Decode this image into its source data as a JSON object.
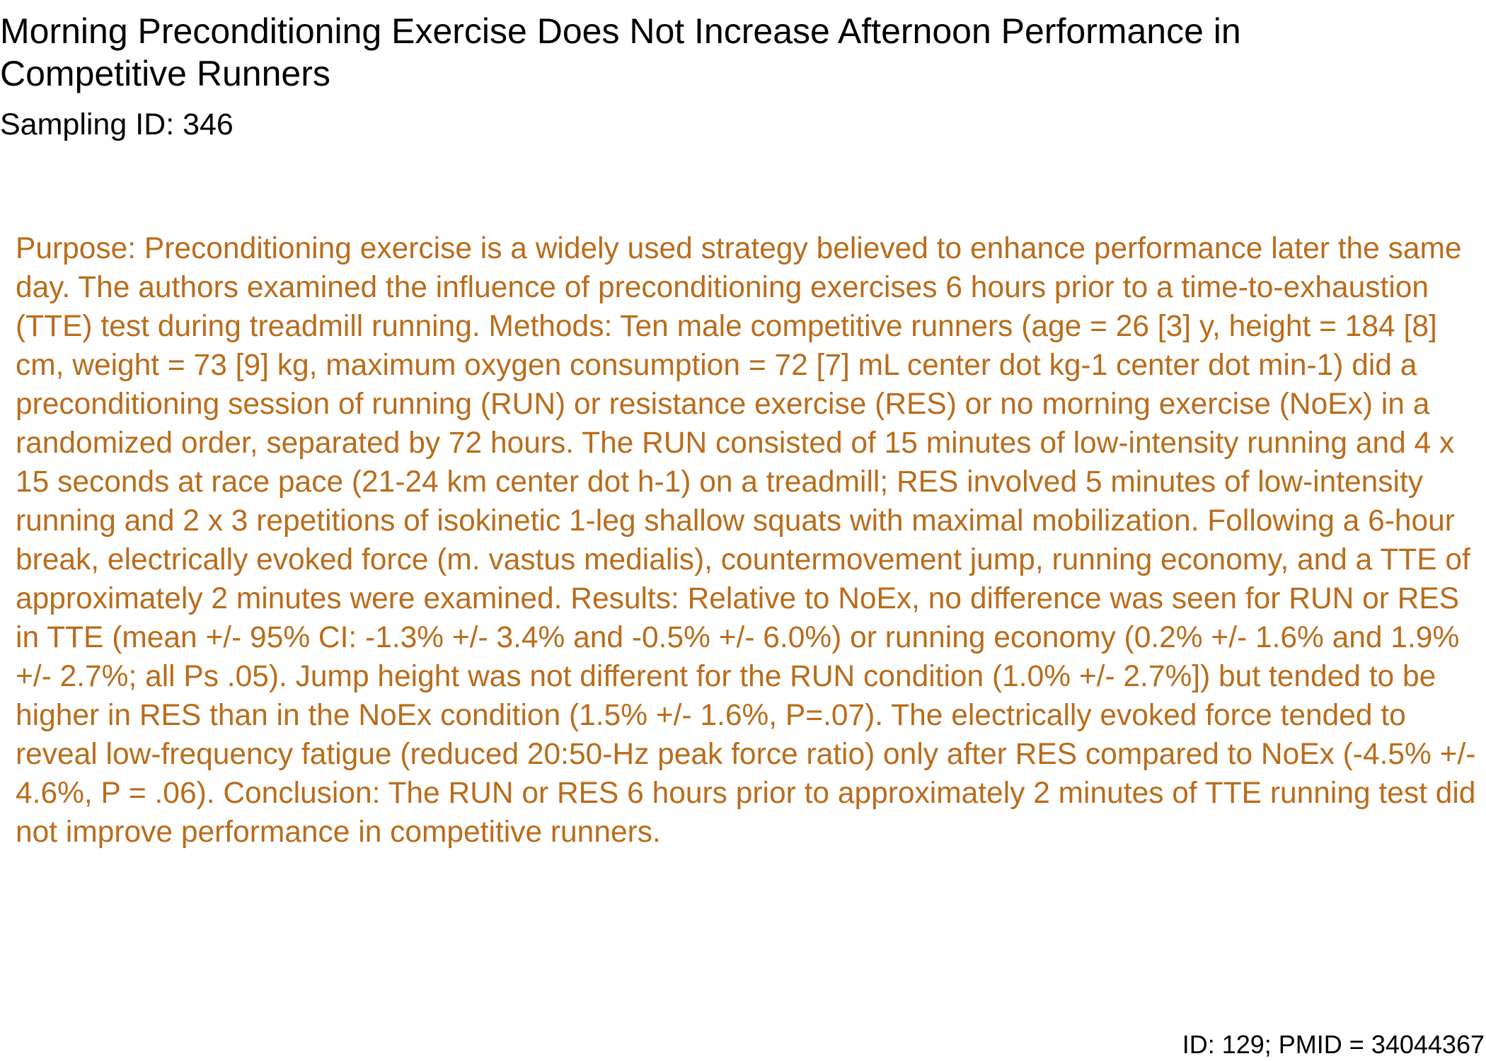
{
  "document": {
    "title": "Morning Preconditioning Exercise Does Not Increase Afternoon Performance in Competitive Runners",
    "sampling_id": "Sampling ID: 346",
    "abstract": "Purpose: Preconditioning exercise is a widely used strategy believed to enhance performance later the same day. The authors examined the influence of preconditioning exercises 6 hours prior to a time-to-exhaustion (TTE) test during treadmill running. Methods: Ten male competitive runners (age = 26 [3] y, height = 184 [8] cm, weight = 73 [9] kg, maximum oxygen consumption = 72 [7] mL center dot kg-1 center dot min-1) did a preconditioning session of running (RUN) or resistance exercise (RES) or no morning exercise (NoEx) in a randomized order, separated by 72 hours. The RUN consisted of 15 minutes of low-intensity running and 4 x 15 seconds at race pace (21-24 km center dot h-1) on a treadmill; RES involved 5 minutes of low-intensity running and 2 x 3 repetitions of isokinetic 1-leg shallow squats with maximal mobilization. Following a 6-hour break, electrically evoked force (m. vastus medialis), countermovement jump, running economy, and a TTE of approximately 2 minutes were examined. Results: Relative to NoEx, no difference was seen for RUN or RES in TTE (mean +/- 95% CI: -1.3% +/- 3.4% and -0.5% +/- 6.0%) or running economy (0.2% +/- 1.6% and 1.9% +/- 2.7%; all Ps .05). Jump height was not different for the RUN condition (1.0% +/- 2.7%]) but tended to be higher in RES than in the NoEx condition (1.5% +/- 1.6%, P=.07). The electrically evoked force tended to reveal low-frequency fatigue (reduced 20:50-Hz peak force ratio) only after RES compared to NoEx (-4.5% +/- 4.6%, P = .06). Conclusion: The RUN or RES 6 hours prior to approximately 2 minutes of TTE running test did not improve performance in competitive runners.",
    "footer_id": "ID: 129; PMID = 34044367"
  },
  "colors": {
    "abstract_text": "#B96D1C",
    "heading_text": "#000000",
    "background": "#ffffff"
  }
}
